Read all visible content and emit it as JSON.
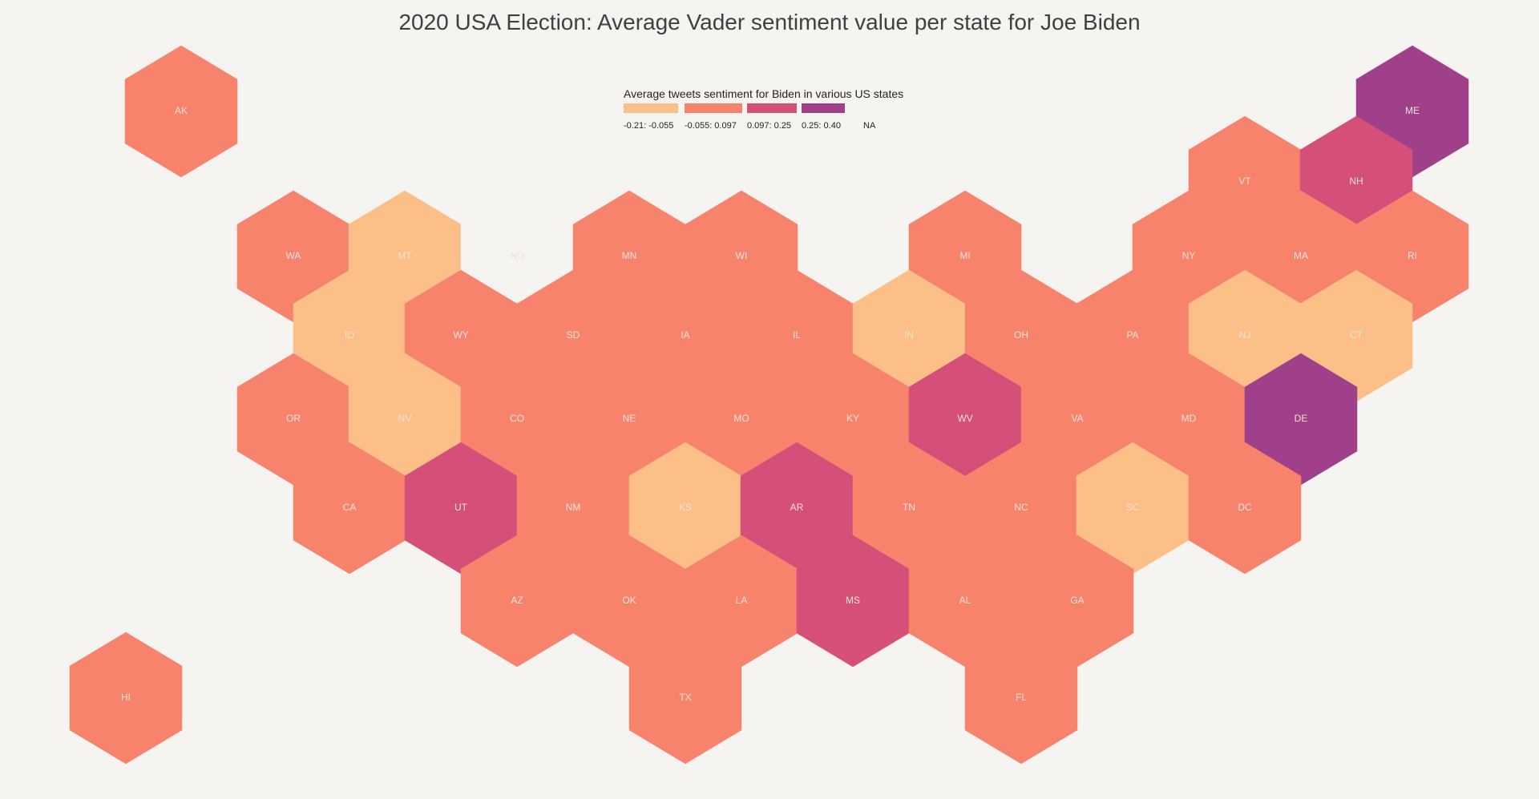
{
  "title": "2020 USA Election: Average Vader sentiment value per state for Joe Biden",
  "legend": {
    "title": "Average tweets sentiment for Biden in various US states",
    "bins": [
      {
        "label": "-0.21: -0.055",
        "color": "#fcbf87"
      },
      {
        "label": "-0.055: 0.097",
        "color": "#f8836c"
      },
      {
        "label": "0.097: 0.25",
        "color": "#d45078"
      },
      {
        "label": "0.25: 0.40",
        "color": "#a03f8a"
      }
    ],
    "na_label": "NA",
    "na_color": "#f5f4f0"
  },
  "states": [
    {
      "abbr": "AK",
      "bin": 1
    },
    {
      "abbr": "ME",
      "bin": 3
    },
    {
      "abbr": "VT",
      "bin": 1
    },
    {
      "abbr": "NH",
      "bin": 2
    },
    {
      "abbr": "WA",
      "bin": 1
    },
    {
      "abbr": "MT",
      "bin": 0
    },
    {
      "abbr": "ND",
      "bin": null
    },
    {
      "abbr": "MN",
      "bin": 1
    },
    {
      "abbr": "WI",
      "bin": 1
    },
    {
      "abbr": "MI",
      "bin": 1
    },
    {
      "abbr": "NY",
      "bin": 1
    },
    {
      "abbr": "MA",
      "bin": 1
    },
    {
      "abbr": "RI",
      "bin": 1
    },
    {
      "abbr": "ID",
      "bin": 0
    },
    {
      "abbr": "WY",
      "bin": 1
    },
    {
      "abbr": "SD",
      "bin": 1
    },
    {
      "abbr": "IA",
      "bin": 1
    },
    {
      "abbr": "IL",
      "bin": 1
    },
    {
      "abbr": "IN",
      "bin": 0
    },
    {
      "abbr": "OH",
      "bin": 1
    },
    {
      "abbr": "PA",
      "bin": 1
    },
    {
      "abbr": "NJ",
      "bin": 0
    },
    {
      "abbr": "CT",
      "bin": 0
    },
    {
      "abbr": "OR",
      "bin": 1
    },
    {
      "abbr": "NV",
      "bin": 0
    },
    {
      "abbr": "CO",
      "bin": 1
    },
    {
      "abbr": "NE",
      "bin": 1
    },
    {
      "abbr": "MO",
      "bin": 1
    },
    {
      "abbr": "KY",
      "bin": 1
    },
    {
      "abbr": "WV",
      "bin": 2
    },
    {
      "abbr": "VA",
      "bin": 1
    },
    {
      "abbr": "MD",
      "bin": 1
    },
    {
      "abbr": "DE",
      "bin": 3
    },
    {
      "abbr": "CA",
      "bin": 1
    },
    {
      "abbr": "UT",
      "bin": 2
    },
    {
      "abbr": "NM",
      "bin": 1
    },
    {
      "abbr": "KS",
      "bin": 0
    },
    {
      "abbr": "AR",
      "bin": 2
    },
    {
      "abbr": "TN",
      "bin": 1
    },
    {
      "abbr": "NC",
      "bin": 1
    },
    {
      "abbr": "SC",
      "bin": 0
    },
    {
      "abbr": "DC",
      "bin": 1
    },
    {
      "abbr": "AZ",
      "bin": 1
    },
    {
      "abbr": "OK",
      "bin": 1
    },
    {
      "abbr": "LA",
      "bin": 1
    },
    {
      "abbr": "MS",
      "bin": 2
    },
    {
      "abbr": "AL",
      "bin": 1
    },
    {
      "abbr": "GA",
      "bin": 1
    },
    {
      "abbr": "HI",
      "bin": 1
    },
    {
      "abbr": "TX",
      "bin": 1
    },
    {
      "abbr": "FL",
      "bin": 1
    }
  ]
}
